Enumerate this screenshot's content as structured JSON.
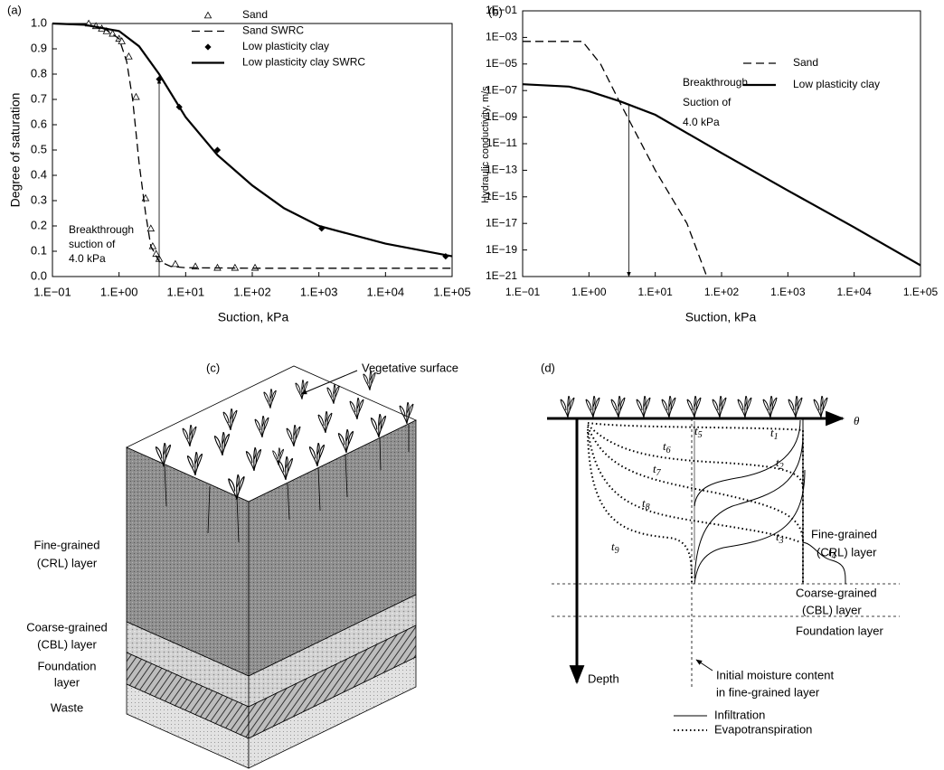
{
  "chart_data": [
    {
      "type": "line",
      "panel_label": "(a)",
      "xlabel": "Suction, kPa",
      "ylabel": "Degree of saturation",
      "xscale": "log",
      "xlim": [
        0.1,
        100000
      ],
      "xticks": [
        {
          "value": 0.1,
          "label": "1.E−01"
        },
        {
          "value": 1,
          "label": "1.E+00"
        },
        {
          "value": 10,
          "label": "1.E+01"
        },
        {
          "value": 100,
          "label": "1.E+02"
        },
        {
          "value": 1000,
          "label": "1.E+03"
        },
        {
          "value": 10000,
          "label": "1.E+04"
        },
        {
          "value": 100000,
          "label": "1.E+05"
        }
      ],
      "ylim": [
        0,
        1
      ],
      "yticks": [
        {
          "value": 0,
          "label": "0.0"
        },
        0.1,
        0.2,
        0.3,
        0.4,
        0.5,
        0.6,
        0.7,
        0.8,
        0.9,
        {
          "value": 1,
          "label": "1.0"
        }
      ],
      "legend_position": "upper right",
      "series": [
        {
          "name": "Sand",
          "style": "marker",
          "marker": "triangle-open",
          "color": "#000000",
          "x": [
            0.35,
            0.45,
            0.55,
            0.65,
            0.8,
            1.0,
            1.1,
            1.4,
            1.8,
            2.5,
            3.0,
            3.2,
            3.6,
            4.0,
            7,
            14,
            30,
            55,
            110
          ],
          "values": [
            1.0,
            0.99,
            0.98,
            0.97,
            0.96,
            0.94,
            0.93,
            0.87,
            0.71,
            0.31,
            0.19,
            0.12,
            0.09,
            0.07,
            0.05,
            0.04,
            0.035,
            0.035,
            0.035
          ]
        },
        {
          "name": "Sand SWRC",
          "style": "dashed",
          "color": "#000000",
          "x": [
            0.1,
            0.3,
            0.6,
            1.0,
            1.3,
            1.6,
            2.0,
            2.5,
            3.0,
            4.0,
            6,
            10,
            100,
            100000
          ],
          "values": [
            1.0,
            0.995,
            0.98,
            0.94,
            0.85,
            0.7,
            0.45,
            0.25,
            0.12,
            0.06,
            0.04,
            0.035,
            0.033,
            0.033
          ]
        },
        {
          "name": "Low plasticity clay",
          "style": "marker",
          "marker": "diamond",
          "color": "#000000",
          "x": [
            4.0,
            8,
            30,
            1100,
            80000
          ],
          "values": [
            0.78,
            0.67,
            0.5,
            0.19,
            0.08
          ]
        },
        {
          "name": "Low plasticity clay SWRC",
          "style": "solid",
          "color": "#000000",
          "x": [
            0.1,
            0.3,
            1,
            2,
            4,
            10,
            30,
            100,
            300,
            1000,
            10000,
            100000
          ],
          "values": [
            1.0,
            0.995,
            0.97,
            0.91,
            0.8,
            0.63,
            0.48,
            0.36,
            0.27,
            0.2,
            0.13,
            0.08
          ]
        }
      ],
      "annotation": {
        "lines": [
          "Breakthrough",
          "suction of",
          "4.0 kPa"
        ],
        "arrow": {
          "x": 4,
          "y": [
            0,
            0.78
          ]
        }
      }
    },
    {
      "type": "line",
      "panel_label": "(b)",
      "xlabel": "Suction, kPa",
      "ylabel": "Hydraulic conductivity, m/s",
      "xscale": "log",
      "yscale": "log",
      "xlim": [
        0.1,
        100000
      ],
      "xticks": [
        {
          "value": 0.1,
          "label": "1.E−01"
        },
        {
          "value": 1,
          "label": "1.E+00"
        },
        {
          "value": 10,
          "label": "1.E+01"
        },
        {
          "value": 100,
          "label": "1.E+02"
        },
        {
          "value": 1000,
          "label": "1.E+03"
        },
        {
          "value": 10000,
          "label": "1.E+04"
        },
        {
          "value": 100000,
          "label": "1.E+05"
        }
      ],
      "ylim": [
        1e-21,
        0.1
      ],
      "yticks": [
        {
          "value": 1e-21,
          "label": "1E−21"
        },
        {
          "value": 1e-19,
          "label": "1E−19"
        },
        {
          "value": 1e-17,
          "label": "1E−17"
        },
        {
          "value": 1e-15,
          "label": "1E−15"
        },
        {
          "value": 1e-13,
          "label": "1E−13"
        },
        {
          "value": 1e-11,
          "label": "1E−11"
        },
        {
          "value": 1e-09,
          "label": "1E−09"
        },
        {
          "value": 1e-07,
          "label": "1E−07"
        },
        {
          "value": 1e-05,
          "label": "1E−05"
        },
        {
          "value": 0.001,
          "label": "1E−03"
        },
        {
          "value": 0.1,
          "label": "1E−01"
        }
      ],
      "legend_position": "upper right",
      "series": [
        {
          "name": "Sand",
          "style": "dashed",
          "color": "#000000",
          "x": [
            0.1,
            0.8,
            1.5,
            3,
            10,
            30,
            60
          ],
          "values": [
            0.0005,
            0.0005,
            1e-05,
            1e-08,
            1e-13,
            1e-17,
            1e-21
          ]
        },
        {
          "name": "Low plasticity clay",
          "style": "solid",
          "color": "#000000",
          "x": [
            0.1,
            0.5,
            1,
            3,
            10,
            100,
            1000,
            10000,
            100000
          ],
          "values": [
            3e-07,
            2e-07,
            9e-08,
            1.5e-08,
            1.5e-09,
            2e-12,
            3e-15,
            5e-18,
            7e-21
          ]
        }
      ],
      "annotation": {
        "lines": [
          "Breakthrough",
          "Suction of",
          "4.0 kPa"
        ],
        "arrow": {
          "x": 4,
          "y": [
            1e-08,
            1e-21
          ]
        }
      }
    }
  ],
  "diagrams": {
    "c": {
      "panel_label": "(c)",
      "surface_label": "Vegetative surface",
      "layers": [
        [
          "Fine-grained",
          "(CRL) layer"
        ],
        [
          "Coarse-grained",
          "(CBL) layer"
        ],
        [
          "Foundation",
          "layer"
        ],
        [
          "Waste"
        ]
      ]
    },
    "d": {
      "panel_label": "(d)",
      "axis_x": "θ",
      "axis_y": "Depth",
      "time_labels": [
        {
          "base": "t",
          "sub": "1"
        },
        {
          "base": "t",
          "sub": "2"
        },
        {
          "base": "t",
          "sub": "3"
        },
        {
          "base": "t",
          "sub": "4"
        },
        {
          "base": "t",
          "sub": "5"
        },
        {
          "base": "t",
          "sub": "6"
        },
        {
          "base": "t",
          "sub": "7"
        },
        {
          "base": "t",
          "sub": "8"
        },
        {
          "base": "t",
          "sub": "9"
        }
      ],
      "layers": [
        [
          "Fine-grained",
          "(CRL) layer"
        ],
        [
          "Coarse-grained",
          "(CBL) layer"
        ],
        [
          "Foundation layer"
        ]
      ],
      "note": [
        "Initial moisture content",
        "in fine-grained layer"
      ],
      "legend": [
        "Infiltration",
        "Evapotranspiration"
      ]
    }
  }
}
